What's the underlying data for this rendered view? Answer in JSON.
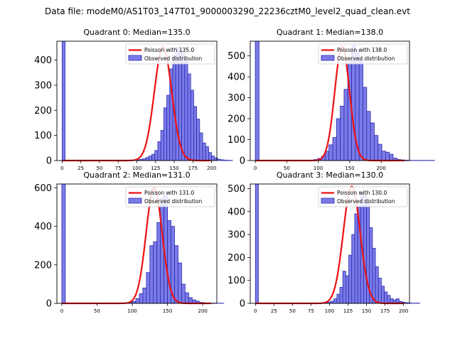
{
  "suptitle": "Data file: modeM0/AS1T03_147T01_9000003290_22236cztM0_level2_quad_clean.evt",
  "chart_data": [
    {
      "type": "bar",
      "title": "Quadrant 0: Median=135.0",
      "median": 135.0,
      "xlim": [
        -7,
        207
      ],
      "ylim": [
        0,
        475
      ],
      "xticks": [
        0,
        25,
        50,
        75,
        100,
        125,
        150,
        175,
        200
      ],
      "yticks": [
        0,
        100,
        200,
        300,
        400
      ],
      "bin_width": 4,
      "zero_bin_count": 475,
      "hist_start": 84,
      "hist_values": [
        0,
        1,
        1,
        2,
        3,
        5,
        7,
        12,
        18,
        25,
        40,
        75,
        120,
        210,
        260,
        365,
        420,
        450,
        440,
        435,
        395,
        345,
        280,
        215,
        165,
        110,
        70,
        55,
        32,
        18,
        10,
        5,
        3,
        2,
        1,
        1
      ],
      "legend": {
        "poisson": "Poisson with 135.0",
        "observed": "Observed distribution"
      },
      "poisson_lambda": 135.0,
      "poisson_peak": 452
    },
    {
      "type": "bar",
      "title": "Quadrant 1: Median=138.0",
      "median": 138.0,
      "xlim": [
        -8,
        245
      ],
      "ylim": [
        0,
        570
      ],
      "xticks": [
        0,
        50,
        100,
        150,
        200
      ],
      "yticks": [
        0,
        100,
        200,
        300,
        400,
        500
      ],
      "bin_width": 6,
      "zero_bin_count": 570,
      "hist_start": 87,
      "hist_values": [
        2,
        5,
        10,
        20,
        45,
        75,
        110,
        200,
        260,
        340,
        470,
        550,
        525,
        480,
        350,
        235,
        180,
        120,
        78,
        45,
        40,
        30,
        12,
        5,
        3,
        2,
        1,
        1,
        1,
        1,
        1,
        1,
        1
      ],
      "legend": {
        "poisson": "Poisson with 138.0",
        "observed": "Observed distribution"
      },
      "poisson_lambda": 138.0,
      "poisson_peak": 545
    },
    {
      "type": "bar",
      "title": "Quadrant 2: Median=131.0",
      "median": 131.0,
      "xlim": [
        -7,
        220
      ],
      "ylim": [
        0,
        620
      ],
      "xticks": [
        0,
        50,
        100,
        150,
        200
      ],
      "yticks": [
        0,
        200,
        400,
        600
      ],
      "bin_width": 5,
      "zero_bin_count": 620,
      "hist_start": 80,
      "hist_values": [
        1,
        2,
        3,
        5,
        10,
        25,
        50,
        80,
        160,
        300,
        320,
        420,
        545,
        560,
        430,
        400,
        300,
        210,
        100,
        55,
        30,
        18,
        12,
        5,
        3,
        2,
        1,
        1,
        1,
        1
      ],
      "legend": {
        "poisson": "Poisson with 131.0",
        "observed": "Observed distribution"
      },
      "poisson_lambda": 131.0,
      "poisson_peak": 600
    },
    {
      "type": "bar",
      "title": "Quadrant 3: Median=130.0",
      "median": 130.0,
      "xlim": [
        -7,
        208
      ],
      "ylim": [
        0,
        520
      ],
      "xticks": [
        0,
        25,
        50,
        75,
        100,
        125,
        150,
        175,
        200
      ],
      "yticks": [
        0,
        100,
        200,
        300,
        400,
        500
      ],
      "bin_width": 4,
      "zero_bin_count": 520,
      "hist_start": 82,
      "hist_values": [
        1,
        1,
        2,
        3,
        6,
        10,
        20,
        40,
        70,
        140,
        120,
        210,
        300,
        390,
        420,
        480,
        470,
        440,
        330,
        240,
        160,
        110,
        75,
        50,
        35,
        20,
        15,
        20,
        8,
        5,
        3,
        2,
        1,
        1,
        1
      ],
      "legend": {
        "poisson": "Poisson with 130.0",
        "observed": "Observed distribution"
      },
      "poisson_lambda": 130.0,
      "poisson_peak": 510
    }
  ],
  "colors": {
    "bar_fill": "#7b7be8",
    "bar_edge": "#2a2ab0",
    "curve": "#ee1111",
    "axis": "#000000"
  }
}
